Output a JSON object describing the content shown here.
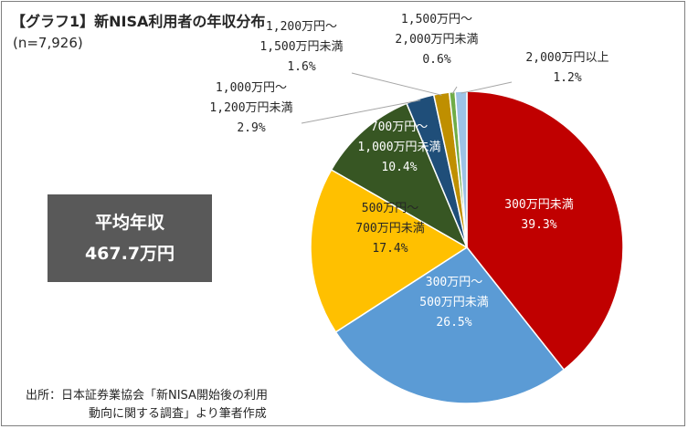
{
  "title": "【グラフ1】新NISA利用者の年収分布",
  "subtitle": "(n=7,926)",
  "average_box": {
    "label": "平均年収",
    "value": "467.7万円"
  },
  "source": {
    "line1": "出所：日本証券業協会「新NISA開始後の利用",
    "line2": "動向に関する調査」より筆者作成"
  },
  "chart_data": {
    "type": "pie",
    "title": "【グラフ1】新NISA利用者の年収分布",
    "subtitle": "(n=7,926)",
    "start_angle": "12 o'clock",
    "direction": "clockwise",
    "categories": [
      "300万円未満",
      "300万円～500万円未満",
      "500万円～700万円未満",
      "700万円～1,000万円未満",
      "1,000万円～1,200万円未満",
      "1,200万円～1,500万円未満",
      "1,500万円～2,000万円未満",
      "2,000万円以上"
    ],
    "values": [
      39.3,
      26.5,
      17.4,
      10.4,
      2.9,
      1.6,
      0.6,
      1.2
    ],
    "colors": [
      "#c00000",
      "#5b9bd5",
      "#ffc000",
      "#375623",
      "#1f4e79",
      "#bf8f00",
      "#70ad47",
      "#9dc3e6"
    ],
    "labels": [
      {
        "lines": [
          "300万円未満",
          "39.3%"
        ]
      },
      {
        "lines": [
          "300万円～",
          "500万円未満",
          "26.5%"
        ]
      },
      {
        "lines": [
          "500万円～",
          "700万円未満",
          "17.4%"
        ]
      },
      {
        "lines": [
          "700万円～",
          "1,000万円未満",
          "10.4%"
        ]
      },
      {
        "lines": [
          "1,000万円～",
          "1,200万円未満",
          "2.9%"
        ]
      },
      {
        "lines": [
          "1,200万円～",
          "1,500万円未満",
          "1.6%"
        ]
      },
      {
        "lines": [
          "1,500万円～",
          "2,000万円未満",
          "0.6%"
        ]
      },
      {
        "lines": [
          "2,000万円以上",
          "1.2%"
        ]
      }
    ]
  }
}
